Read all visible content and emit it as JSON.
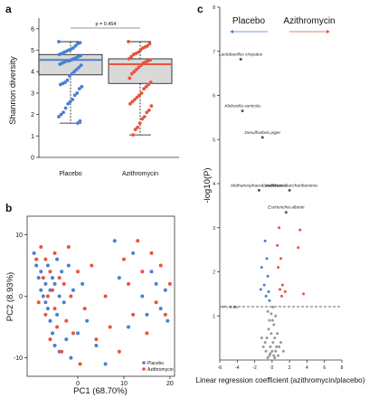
{
  "colors": {
    "placebo": "#4a7fd4",
    "azithromycin": "#e8543a",
    "grey": "#999999",
    "box_fill": "#d9d9d9"
  },
  "chart_data": [
    {
      "panel_label": "a",
      "type": "box",
      "categories": [
        "Placebo",
        "Azithromycin"
      ],
      "ylabel": "Shannon diversity",
      "ylim": [
        0,
        6.5
      ],
      "yticks": [
        "0",
        "1",
        "2",
        "3",
        "4",
        "5",
        "6"
      ],
      "annotation": "p = 0.454",
      "boxes": [
        {
          "name": "Placebo",
          "whisker_low": 1.6,
          "q1": 3.85,
          "median": 4.55,
          "q3": 4.8,
          "whisker_high": 5.4,
          "points": [
            5.4,
            5.35,
            5.3,
            5.2,
            5.1,
            5.05,
            5.0,
            4.95,
            4.9,
            4.85,
            4.8,
            4.75,
            4.7,
            4.65,
            4.6,
            4.55,
            4.5,
            4.5,
            4.45,
            4.4,
            4.35,
            4.3,
            4.2,
            4.1,
            4.0,
            3.9,
            3.8,
            3.6,
            3.5,
            3.45,
            3.4,
            3.3,
            3.2,
            3.0,
            2.9,
            2.7,
            2.6,
            2.5,
            2.3,
            2.1,
            2.0,
            1.9,
            1.7,
            1.6
          ]
        },
        {
          "name": "Azithromycin",
          "whisker_low": 1.05,
          "q1": 3.45,
          "median": 4.35,
          "q3": 4.6,
          "whisker_high": 5.4,
          "points": [
            5.4,
            5.3,
            5.2,
            5.15,
            5.1,
            5.0,
            4.9,
            4.85,
            4.8,
            4.7,
            4.6,
            4.55,
            4.5,
            4.45,
            4.4,
            4.3,
            4.2,
            4.1,
            4.0,
            3.9,
            3.7,
            3.5,
            3.4,
            3.3,
            3.2,
            3.0,
            2.9,
            2.8,
            2.7,
            2.6,
            2.5,
            2.4,
            2.2,
            2.1,
            1.9,
            1.8,
            1.6,
            1.4,
            1.3,
            1.05
          ]
        }
      ]
    },
    {
      "panel_label": "b",
      "type": "scatter",
      "xlabel": "PC1 (68.70%)",
      "ylabel": "PC2 (8.93%)",
      "xlim": [
        -11,
        21
      ],
      "ylim": [
        -13,
        13
      ],
      "xticks": [
        "0",
        "10",
        "20"
      ],
      "yticks": [
        "-10",
        "0",
        "10"
      ],
      "legend_position": "bottom-right",
      "series": [
        {
          "name": "Placebo",
          "points": [
            [
              -9.5,
              7
            ],
            [
              -9,
              5
            ],
            [
              -8.5,
              3
            ],
            [
              -8,
              4
            ],
            [
              -8,
              1
            ],
            [
              -7.5,
              0
            ],
            [
              -7,
              -1
            ],
            [
              -7,
              2
            ],
            [
              -6.5,
              5
            ],
            [
              -6.5,
              -2
            ],
            [
              -6,
              1
            ],
            [
              -6,
              -4
            ],
            [
              -5.5,
              3
            ],
            [
              -5.5,
              -6
            ],
            [
              -5,
              2
            ],
            [
              -5,
              -8
            ],
            [
              -4.5,
              6
            ],
            [
              -4.5,
              -3
            ],
            [
              -4,
              0
            ],
            [
              -4,
              -9
            ],
            [
              -3.5,
              4
            ],
            [
              -3,
              -1
            ],
            [
              -2.5,
              -7
            ],
            [
              -2,
              5
            ],
            [
              -1.5,
              -10
            ],
            [
              -1,
              1
            ],
            [
              0,
              -6
            ],
            [
              1,
              2
            ],
            [
              2,
              -4
            ],
            [
              4,
              -8
            ],
            [
              6,
              -11
            ],
            [
              8,
              9
            ],
            [
              9,
              3
            ],
            [
              11,
              -5
            ],
            [
              12,
              7
            ],
            [
              14,
              0
            ],
            [
              15,
              -3
            ],
            [
              16,
              4
            ],
            [
              17,
              2
            ],
            [
              18,
              -2
            ],
            [
              19,
              1
            ],
            [
              19.5,
              -4
            ]
          ]
        },
        {
          "name": "Azithromycin",
          "points": [
            [
              -9,
              6
            ],
            [
              -8.5,
              -1
            ],
            [
              -8,
              8
            ],
            [
              -7.5,
              3
            ],
            [
              -7,
              6
            ],
            [
              -7,
              -3
            ],
            [
              -6.5,
              0
            ],
            [
              -6,
              4
            ],
            [
              -6,
              -7
            ],
            [
              -5.5,
              1
            ],
            [
              -5,
              7
            ],
            [
              -5,
              -2
            ],
            [
              -4.5,
              -5
            ],
            [
              -4,
              3
            ],
            [
              -3.5,
              -9
            ],
            [
              -3,
              2
            ],
            [
              -2.5,
              -4
            ],
            [
              -2,
              8
            ],
            [
              -1.5,
              0
            ],
            [
              -1,
              -6
            ],
            [
              0,
              4
            ],
            [
              0.5,
              -11
            ],
            [
              1.5,
              -2
            ],
            [
              3,
              5
            ],
            [
              4,
              -7
            ],
            [
              6,
              0
            ],
            [
              7,
              -5
            ],
            [
              9,
              -9
            ],
            [
              10,
              6
            ],
            [
              11,
              2
            ],
            [
              12,
              -3
            ],
            [
              13,
              9
            ],
            [
              14,
              4
            ],
            [
              15,
              -6
            ],
            [
              16,
              7
            ],
            [
              17,
              -1
            ],
            [
              18,
              5
            ],
            [
              19,
              -3
            ],
            [
              20,
              2
            ]
          ]
        }
      ]
    },
    {
      "panel_label": "c",
      "type": "scatter",
      "subtype": "volcano",
      "xlabel": "Linear regression coefficient (azithromycin/placebo)",
      "ylabel": "-log10(P)",
      "xlim": [
        -6,
        8
      ],
      "ylim": [
        0,
        8
      ],
      "xticks": [
        "-6",
        "-4",
        "-2",
        "0",
        "2",
        "4",
        "6",
        "8"
      ],
      "yticks": [
        "1",
        "2",
        "3",
        "4",
        "5",
        "6",
        "7",
        "8"
      ],
      "threshold_label": "P = 0.05",
      "threshold": 1.3,
      "direction_labels": {
        "left": "Placebo",
        "right": "Azithromycin"
      },
      "annotations": [
        {
          "text": "Lactobacillus crispatus",
          "x": -3.6,
          "y": 6.82
        },
        {
          "text": "Klebsiella variicola",
          "x": -3.4,
          "y": 5.65
        },
        {
          "text": "Desulfovibrio piger",
          "x": -1.1,
          "y": 5.05
        },
        {
          "text": "Methanosphaera stadtmanae",
          "x": -1.5,
          "y": 3.85
        },
        {
          "text": "Candidatus Saccharibacteria",
          "x": 2.0,
          "y": 3.85
        },
        {
          "text": "Escherichia albertii",
          "x": 1.6,
          "y": 3.35
        }
      ],
      "series": [
        {
          "name": "placebo-enriched",
          "points": [
            [
              -3.6,
              6.82
            ],
            [
              -3.4,
              5.65
            ],
            [
              -1.1,
              5.05
            ],
            [
              -1.5,
              3.85
            ],
            [
              -0.8,
              2.7
            ],
            [
              -0.6,
              2.3
            ],
            [
              -1.2,
              2.1
            ],
            [
              -0.5,
              1.9
            ],
            [
              -0.9,
              1.7
            ],
            [
              -0.4,
              1.55
            ],
            [
              -0.7,
              1.45
            ],
            [
              -1.3,
              1.6
            ],
            [
              -0.3,
              1.35
            ]
          ]
        },
        {
          "name": "azithromycin-enriched",
          "points": [
            [
              2.0,
              3.85
            ],
            [
              1.6,
              3.35
            ],
            [
              0.8,
              3.0
            ],
            [
              3.2,
              2.95
            ],
            [
              0.6,
              2.6
            ],
            [
              3.0,
              2.55
            ],
            [
              1.0,
              2.3
            ],
            [
              0.7,
              2.1
            ],
            [
              1.2,
              1.7
            ],
            [
              0.9,
              1.6
            ],
            [
              1.5,
              1.55
            ],
            [
              1.1,
              1.45
            ],
            [
              3.6,
              1.5
            ]
          ]
        },
        {
          "name": "not significant",
          "points": [
            [
              -0.5,
              1.1
            ],
            [
              -0.3,
              0.9
            ],
            [
              0.2,
              0.8
            ],
            [
              0.4,
              1.0
            ],
            [
              -0.1,
              0.6
            ],
            [
              0.1,
              0.4
            ],
            [
              -0.2,
              0.3
            ],
            [
              0.3,
              0.5
            ],
            [
              -0.4,
              0.7
            ],
            [
              0.5,
              0.3
            ],
            [
              0.0,
              0.2
            ],
            [
              -0.6,
              0.5
            ],
            [
              0.6,
              0.6
            ],
            [
              -0.8,
              0.4
            ],
            [
              0.8,
              0.3
            ],
            [
              0.2,
              0.1
            ],
            [
              -0.2,
              0.15
            ],
            [
              0.1,
              1.2
            ],
            [
              -0.1,
              1.05
            ],
            [
              0.4,
              0.2
            ],
            [
              -0.3,
              0.1
            ],
            [
              0.7,
              0.1
            ],
            [
              -0.7,
              0.2
            ],
            [
              1.0,
              0.4
            ],
            [
              -1.0,
              0.3
            ],
            [
              1.3,
              0.2
            ],
            [
              -1.2,
              0.5
            ],
            [
              0.3,
              0.05
            ],
            [
              -0.5,
              0.05
            ],
            [
              0.05,
              0.9
            ]
          ]
        }
      ]
    }
  ]
}
